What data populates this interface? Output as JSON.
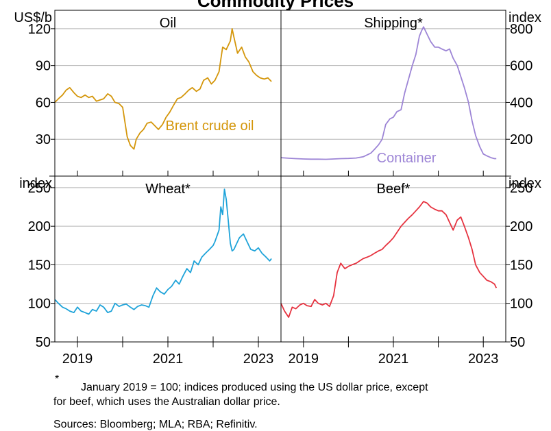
{
  "title": "Commodity Prices",
  "colors": {
    "oil": "#d4960a",
    "shipping": "#9d85d6",
    "wheat": "#1ea3d9",
    "beef": "#e6323f",
    "grid": "#b5b5b5",
    "axis": "#000000"
  },
  "footnote": {
    "marker": "*",
    "line1": "January 2019 = 100; indices produced using the US dollar price, except",
    "line2": "for beef, which uses the Australian dollar price."
  },
  "sources": "Sources: Bloomberg; MLA; RBA; Refinitiv.",
  "chart_data": [
    {
      "type": "line",
      "panel": "top-left",
      "title": "Oil",
      "unit_label": "US$/b",
      "ylim": [
        0,
        135
      ],
      "yticks": [
        30,
        60,
        90,
        120
      ],
      "xlim": [
        2018.5,
        2023.5
      ],
      "xticks": [
        2019,
        2021,
        2023
      ],
      "grid": true,
      "series": [
        {
          "name": "Brent crude oil",
          "x": [
            2018.5,
            2018.58,
            2018.67,
            2018.75,
            2018.83,
            2018.92,
            2019.0,
            2019.08,
            2019.17,
            2019.25,
            2019.33,
            2019.42,
            2019.5,
            2019.58,
            2019.67,
            2019.75,
            2019.83,
            2019.92,
            2020.0,
            2020.05,
            2020.1,
            2020.17,
            2020.25,
            2020.3,
            2020.38,
            2020.46,
            2020.54,
            2020.63,
            2020.71,
            2020.79,
            2020.88,
            2020.96,
            2021.04,
            2021.13,
            2021.21,
            2021.29,
            2021.38,
            2021.46,
            2021.54,
            2021.63,
            2021.71,
            2021.79,
            2021.88,
            2021.96,
            2022.04,
            2022.13,
            2022.17,
            2022.21,
            2022.29,
            2022.38,
            2022.42,
            2022.46,
            2022.54,
            2022.63,
            2022.71,
            2022.79,
            2022.88,
            2022.96,
            2023.04,
            2023.13,
            2023.21,
            2023.29
          ],
          "values": [
            60,
            63,
            66,
            70,
            72,
            68,
            65,
            64,
            66,
            64,
            65,
            61,
            62,
            63,
            67,
            65,
            60,
            59,
            56,
            44,
            32,
            25,
            22,
            30,
            35,
            38,
            43,
            44,
            41,
            38,
            42,
            48,
            52,
            58,
            63,
            64,
            67,
            70,
            72,
            69,
            71,
            78,
            80,
            75,
            78,
            85,
            95,
            105,
            103,
            110,
            120,
            113,
            100,
            105,
            97,
            93,
            85,
            82,
            80,
            79,
            80,
            77
          ]
        }
      ],
      "annotations": [
        {
          "text": "Brent crude oil",
          "color": "oil"
        }
      ]
    },
    {
      "type": "line",
      "panel": "top-right",
      "title": "Shipping*",
      "unit_label": "index",
      "ylim": [
        0,
        900
      ],
      "yticks": [
        200,
        400,
        600,
        800
      ],
      "xlim": [
        2018.5,
        2023.5
      ],
      "xticks": [
        2019,
        2021,
        2023
      ],
      "grid": true,
      "series": [
        {
          "name": "Container",
          "x": [
            2018.5,
            2018.67,
            2018.83,
            2019.0,
            2019.17,
            2019.33,
            2019.5,
            2019.67,
            2019.83,
            2020.0,
            2020.17,
            2020.33,
            2020.5,
            2020.58,
            2020.67,
            2020.75,
            2020.83,
            2020.92,
            2021.0,
            2021.08,
            2021.17,
            2021.25,
            2021.33,
            2021.42,
            2021.5,
            2021.58,
            2021.63,
            2021.67,
            2021.75,
            2021.83,
            2021.92,
            2022.0,
            2022.08,
            2022.17,
            2022.25,
            2022.33,
            2022.42,
            2022.5,
            2022.58,
            2022.67,
            2022.75,
            2022.83,
            2022.92,
            2023.0,
            2023.08,
            2023.17,
            2023.25,
            2023.29
          ],
          "values": [
            100,
            97,
            95,
            93,
            92,
            92,
            91,
            93,
            95,
            96,
            98,
            105,
            125,
            145,
            170,
            200,
            280,
            310,
            320,
            350,
            360,
            450,
            520,
            600,
            660,
            760,
            790,
            810,
            770,
            730,
            700,
            700,
            690,
            680,
            690,
            640,
            600,
            540,
            480,
            400,
            300,
            220,
            160,
            120,
            110,
            100,
            95,
            95
          ]
        }
      ],
      "annotations": [
        {
          "text": "Container",
          "color": "shipping"
        }
      ]
    },
    {
      "type": "line",
      "panel": "bottom-left",
      "title": "Wheat*",
      "unit_label": "index",
      "ylim": [
        50,
        265
      ],
      "yticks": [
        50,
        100,
        150,
        200,
        250
      ],
      "xlim": [
        2018.5,
        2023.5
      ],
      "xticks": [
        2019,
        2021,
        2023
      ],
      "grid": true,
      "series": [
        {
          "name": "",
          "x": [
            2018.5,
            2018.58,
            2018.67,
            2018.75,
            2018.83,
            2018.92,
            2019.0,
            2019.08,
            2019.17,
            2019.25,
            2019.33,
            2019.42,
            2019.5,
            2019.58,
            2019.67,
            2019.75,
            2019.83,
            2019.92,
            2020.0,
            2020.08,
            2020.17,
            2020.25,
            2020.33,
            2020.42,
            2020.5,
            2020.58,
            2020.67,
            2020.75,
            2020.83,
            2020.92,
            2021.0,
            2021.08,
            2021.17,
            2021.25,
            2021.33,
            2021.42,
            2021.5,
            2021.58,
            2021.67,
            2021.75,
            2021.83,
            2021.92,
            2022.0,
            2022.04,
            2022.13,
            2022.17,
            2022.21,
            2022.25,
            2022.29,
            2022.33,
            2022.38,
            2022.42,
            2022.46,
            2022.5,
            2022.58,
            2022.67,
            2022.75,
            2022.83,
            2022.92,
            2023.0,
            2023.08,
            2023.17,
            2023.25,
            2023.29
          ],
          "values": [
            105,
            100,
            95,
            93,
            90,
            88,
            95,
            90,
            88,
            86,
            92,
            90,
            98,
            95,
            88,
            90,
            100,
            96,
            98,
            99,
            95,
            92,
            96,
            98,
            97,
            95,
            110,
            120,
            115,
            112,
            118,
            122,
            130,
            125,
            135,
            145,
            140,
            155,
            150,
            160,
            165,
            170,
            175,
            180,
            195,
            225,
            215,
            248,
            235,
            210,
            178,
            168,
            170,
            175,
            185,
            190,
            180,
            170,
            168,
            172,
            165,
            160,
            155,
            158
          ]
        }
      ]
    },
    {
      "type": "line",
      "panel": "bottom-right",
      "title": "Beef*",
      "unit_label": "index",
      "ylim": [
        50,
        265
      ],
      "yticks": [
        50,
        100,
        150,
        200,
        250
      ],
      "xlim": [
        2018.5,
        2023.5
      ],
      "xticks": [
        2019,
        2021,
        2023
      ],
      "grid": true,
      "series": [
        {
          "name": "",
          "x": [
            2018.5,
            2018.58,
            2018.67,
            2018.75,
            2018.83,
            2018.92,
            2019.0,
            2019.08,
            2019.17,
            2019.25,
            2019.33,
            2019.42,
            2019.5,
            2019.58,
            2019.67,
            2019.75,
            2019.83,
            2019.92,
            2020.0,
            2020.08,
            2020.17,
            2020.25,
            2020.33,
            2020.42,
            2020.5,
            2020.58,
            2020.67,
            2020.75,
            2020.83,
            2020.92,
            2021.0,
            2021.08,
            2021.17,
            2021.25,
            2021.33,
            2021.42,
            2021.5,
            2021.58,
            2021.67,
            2021.75,
            2021.83,
            2021.92,
            2022.0,
            2022.08,
            2022.17,
            2022.25,
            2022.33,
            2022.42,
            2022.5,
            2022.58,
            2022.67,
            2022.75,
            2022.83,
            2022.92,
            2023.0,
            2023.08,
            2023.17,
            2023.25,
            2023.29
          ],
          "values": [
            100,
            90,
            82,
            95,
            93,
            98,
            100,
            97,
            96,
            105,
            100,
            98,
            100,
            96,
            110,
            140,
            152,
            145,
            148,
            150,
            152,
            155,
            158,
            160,
            162,
            165,
            168,
            170,
            175,
            180,
            185,
            192,
            200,
            205,
            210,
            215,
            220,
            225,
            232,
            230,
            225,
            222,
            220,
            220,
            215,
            205,
            195,
            208,
            212,
            200,
            185,
            170,
            150,
            140,
            135,
            130,
            128,
            125,
            120
          ]
        }
      ]
    }
  ]
}
